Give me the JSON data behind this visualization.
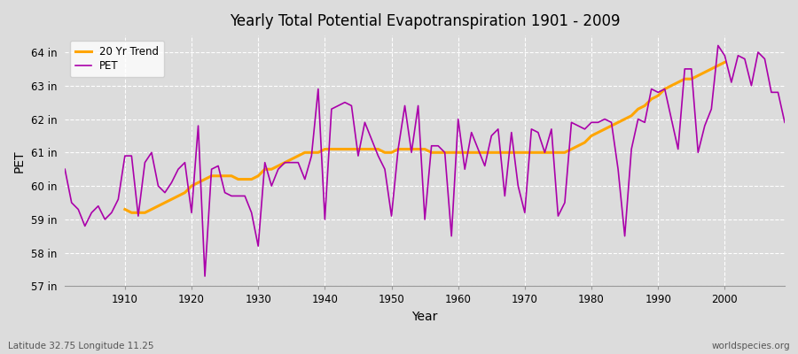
{
  "title": "Yearly Total Potential Evapotranspiration 1901 - 2009",
  "ylabel": "PET",
  "xlabel": "Year",
  "subtitle_left": "Latitude 32.75 Longitude 11.25",
  "subtitle_right": "worldspecies.org",
  "pet_color": "#AA00AA",
  "trend_color": "#FFA500",
  "bg_color": "#DCDCDC",
  "plot_bg_color": "#DCDCDC",
  "grid_color": "#FFFFFF",
  "ylim_min": 57,
  "ylim_max": 64.5,
  "yticks": [
    57,
    58,
    59,
    60,
    61,
    62,
    63,
    64
  ],
  "ytick_labels": [
    "57 in",
    "58 in",
    "59 in",
    "60 in",
    "61 in",
    "62 in",
    "63 in",
    "64 in"
  ],
  "xlim_min": 1901,
  "xlim_max": 2009,
  "xticks": [
    1910,
    1920,
    1930,
    1940,
    1950,
    1960,
    1970,
    1980,
    1990,
    2000
  ],
  "years": [
    1901,
    1902,
    1903,
    1904,
    1905,
    1906,
    1907,
    1908,
    1909,
    1910,
    1911,
    1912,
    1913,
    1914,
    1915,
    1916,
    1917,
    1918,
    1919,
    1920,
    1921,
    1922,
    1923,
    1924,
    1925,
    1926,
    1927,
    1928,
    1929,
    1930,
    1931,
    1932,
    1933,
    1934,
    1935,
    1936,
    1937,
    1938,
    1939,
    1940,
    1941,
    1942,
    1943,
    1944,
    1945,
    1946,
    1947,
    1948,
    1949,
    1950,
    1951,
    1952,
    1953,
    1954,
    1955,
    1956,
    1957,
    1958,
    1959,
    1960,
    1961,
    1962,
    1963,
    1964,
    1965,
    1966,
    1967,
    1968,
    1969,
    1970,
    1971,
    1972,
    1973,
    1974,
    1975,
    1976,
    1977,
    1978,
    1979,
    1980,
    1981,
    1982,
    1983,
    1984,
    1985,
    1986,
    1987,
    1988,
    1989,
    1990,
    1991,
    1992,
    1993,
    1994,
    1995,
    1996,
    1997,
    1998,
    1999,
    2000,
    2001,
    2002,
    2003,
    2004,
    2005,
    2006,
    2007,
    2008,
    2009
  ],
  "pet_values": [
    60.5,
    59.5,
    59.3,
    58.8,
    59.2,
    59.4,
    59.0,
    59.2,
    59.6,
    60.9,
    60.9,
    59.1,
    60.7,
    61.0,
    60.0,
    59.8,
    60.1,
    60.5,
    60.7,
    59.2,
    61.8,
    57.3,
    60.5,
    60.6,
    59.8,
    59.7,
    59.7,
    59.7,
    59.2,
    58.2,
    60.7,
    60.0,
    60.5,
    60.7,
    60.7,
    60.7,
    60.2,
    60.9,
    62.9,
    59.0,
    62.3,
    62.4,
    62.5,
    62.4,
    60.9,
    61.9,
    61.4,
    60.9,
    60.5,
    59.1,
    61.1,
    62.4,
    61.0,
    62.4,
    59.0,
    61.2,
    61.2,
    61.0,
    58.5,
    62.0,
    60.5,
    61.6,
    61.1,
    60.6,
    61.5,
    61.7,
    59.7,
    61.6,
    60.0,
    59.2,
    61.7,
    61.6,
    61.0,
    61.7,
    59.1,
    59.5,
    61.9,
    61.8,
    61.7,
    61.9,
    61.9,
    62.0,
    61.9,
    60.5,
    58.5,
    61.1,
    62.0,
    61.9,
    62.9,
    62.8,
    62.9,
    62.0,
    61.1,
    63.5,
    63.5,
    61.0,
    61.8,
    62.3,
    64.2,
    63.9,
    63.1,
    63.9,
    63.8,
    63.0,
    64.0,
    63.8,
    62.8,
    62.8,
    61.9
  ],
  "trend_values": [
    null,
    null,
    null,
    null,
    null,
    null,
    null,
    null,
    null,
    59.3,
    59.2,
    59.2,
    59.2,
    59.3,
    59.4,
    59.5,
    59.6,
    59.7,
    59.8,
    60.0,
    60.1,
    60.2,
    60.3,
    60.3,
    60.3,
    60.3,
    60.2,
    60.2,
    60.2,
    60.3,
    60.5,
    60.5,
    60.6,
    60.7,
    60.8,
    60.9,
    61.0,
    61.0,
    61.0,
    61.1,
    61.1,
    61.1,
    61.1,
    61.1,
    61.1,
    61.1,
    61.1,
    61.1,
    61.0,
    61.0,
    61.1,
    61.1,
    61.1,
    61.1,
    61.1,
    61.0,
    61.0,
    61.0,
    61.0,
    61.0,
    61.0,
    61.0,
    61.0,
    61.0,
    61.0,
    61.0,
    61.0,
    61.0,
    61.0,
    61.0,
    61.0,
    61.0,
    61.0,
    61.0,
    61.0,
    61.0,
    61.1,
    61.2,
    61.3,
    61.5,
    61.6,
    61.7,
    61.8,
    61.9,
    62.0,
    62.1,
    62.3,
    62.4,
    62.6,
    62.7,
    62.9,
    63.0,
    63.1,
    63.2,
    63.2,
    63.3,
    63.4,
    63.5,
    63.6,
    63.7,
    null,
    null,
    null,
    null,
    null,
    null,
    null,
    null,
    null
  ]
}
